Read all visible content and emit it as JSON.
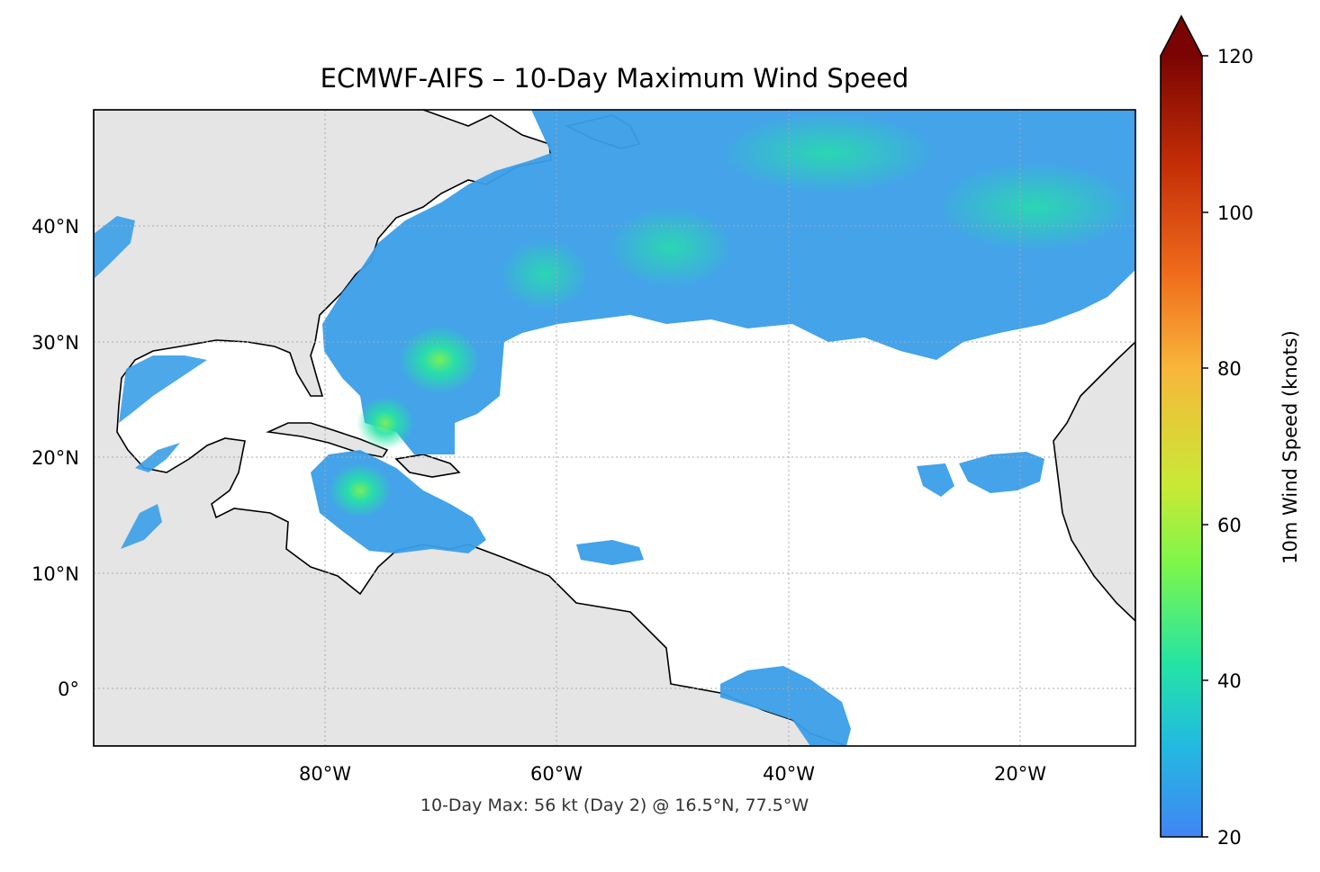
{
  "title": "ECMWF-AIFS – 10-Day Maximum Wind Speed",
  "footer": "10-Day Max: 56 kt (Day 2) @ 16.5°N, 77.5°W",
  "colorbar": {
    "label": "10m Wind Speed (knots)",
    "min": 20,
    "max": 120,
    "extend": "max",
    "ticks": [
      {
        "value": 20,
        "label": "20"
      },
      {
        "value": 40,
        "label": "40"
      },
      {
        "value": 60,
        "label": "60"
      },
      {
        "value": 80,
        "label": "80"
      },
      {
        "value": 100,
        "label": "100"
      },
      {
        "value": 120,
        "label": "120"
      }
    ],
    "stops": [
      "#4285f4",
      "#22bbe0",
      "#24e3a5",
      "#7ef64a",
      "#c9e935",
      "#f8b63a",
      "#f06c1c",
      "#c42e07",
      "#7a0403"
    ]
  },
  "map": {
    "lon_range": [
      -100,
      -10
    ],
    "lat_range": [
      -5,
      50
    ],
    "land_color": "#e5e5e5",
    "ocean_color": "#ffffff",
    "x_ticks": [
      {
        "value": -80,
        "label": "80°W"
      },
      {
        "value": -60,
        "label": "60°W"
      },
      {
        "value": -40,
        "label": "40°W"
      },
      {
        "value": -20,
        "label": "20°W"
      }
    ],
    "y_ticks": [
      {
        "value": 40,
        "label": "40°N"
      },
      {
        "value": 30,
        "label": "30°N"
      },
      {
        "value": 20,
        "label": "20°N"
      },
      {
        "value": 10,
        "label": "10°N"
      },
      {
        "value": 0,
        "label": "0°"
      }
    ]
  }
}
